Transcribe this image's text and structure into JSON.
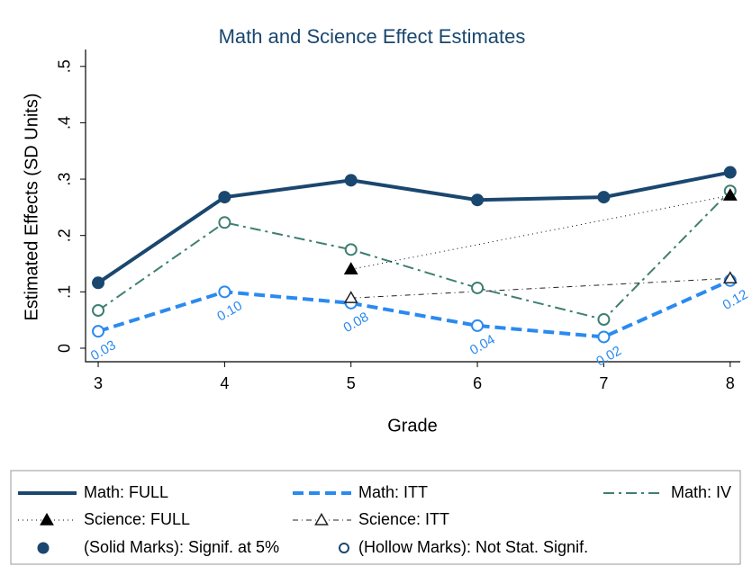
{
  "chart_data": {
    "type": "line",
    "title": "Math and Science Effect Estimates",
    "x_label": "Grade",
    "y_label": "Estimated Effects (SD Units)",
    "x": [
      3,
      4,
      5,
      6,
      7,
      8
    ],
    "xlim": [
      2.9,
      8.08
    ],
    "xticks": [
      3,
      4,
      5,
      6,
      7,
      8
    ],
    "ylim": [
      -0.024,
      0.53
    ],
    "yticks": [
      0,
      {
        "value": 0.1,
        "label": ".1"
      },
      {
        "value": 0.2,
        "label": ".2"
      },
      {
        "value": 0.3,
        "label": ".3"
      },
      {
        "value": 0.4,
        "label": ".4"
      },
      {
        "value": 0.5,
        "label": ".5"
      }
    ],
    "series": [
      {
        "name": "Math: FULL",
        "color": "#1a476f",
        "line": "solid",
        "marker": "circle",
        "filled": true,
        "values": [
          0.116,
          0.268,
          0.298,
          0.263,
          0.268,
          0.312
        ]
      },
      {
        "name": "Math: ITT",
        "color": "#2a8af0",
        "line": "dash",
        "marker": "circle",
        "filled": false,
        "values": [
          0.03,
          0.1,
          0.08,
          0.04,
          0.02,
          0.12
        ],
        "value_labels": [
          "0.03",
          "0.10",
          "0.08",
          "0.04",
          "0.02",
          "0.12"
        ]
      },
      {
        "name": "Math: IV",
        "color": "#3e7f72",
        "line": "dashdot",
        "marker": "circle",
        "filled": false,
        "values": [
          0.067,
          0.223,
          0.175,
          0.107,
          0.051,
          0.279
        ]
      },
      {
        "name": "Science: FULL",
        "color": "#000000",
        "line": "dot",
        "marker": "triangle",
        "filled": true,
        "values": [
          null,
          null,
          0.14,
          null,
          null,
          0.271
        ]
      },
      {
        "name": "Science: ITT",
        "color": "#222222",
        "line": "dashdot-thin",
        "marker": "triangle",
        "filled": false,
        "values": [
          null,
          null,
          0.089,
          null,
          null,
          0.124
        ]
      }
    ],
    "legend_notes": [
      "(Solid Marks): Signif. at 5%",
      "(Hollow Marks): Not Stat. Signif."
    ]
  }
}
